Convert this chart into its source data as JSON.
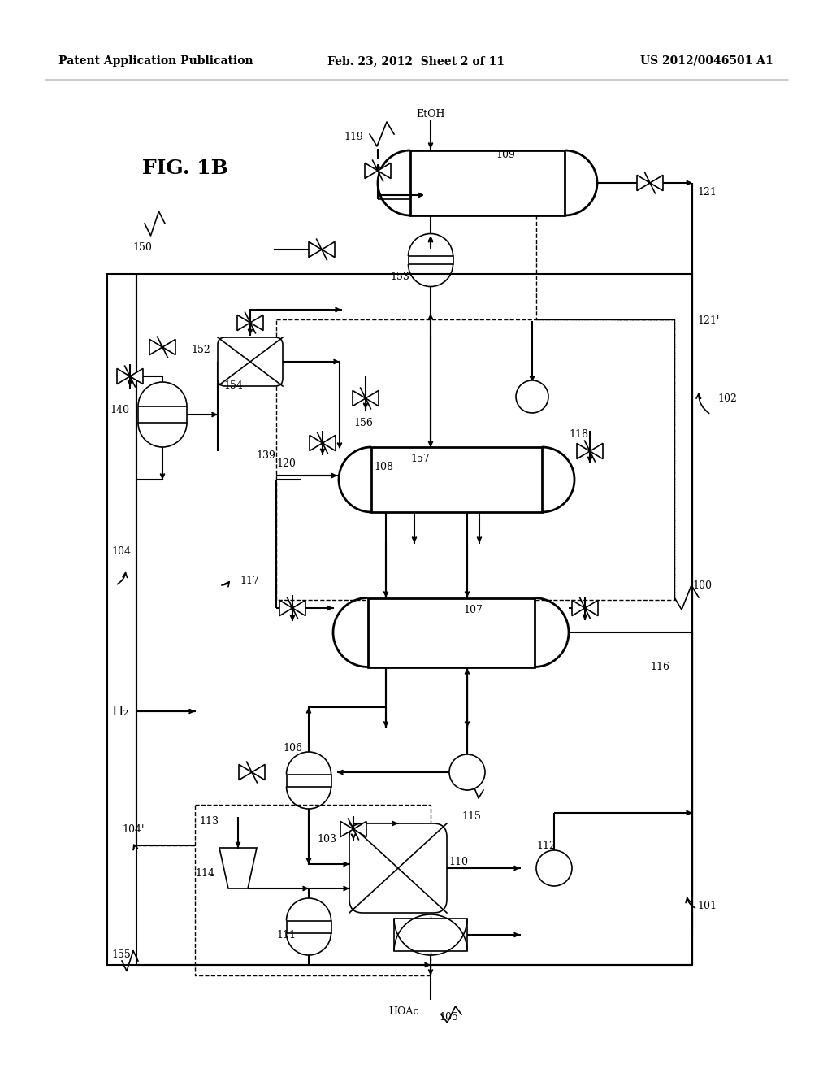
{
  "bg_color": "#ffffff",
  "line_color": "#000000",
  "header_left": "Patent Application Publication",
  "header_center": "Feb. 23, 2012  Sheet 2 of 11",
  "header_right": "US 2012/0046501 A1"
}
